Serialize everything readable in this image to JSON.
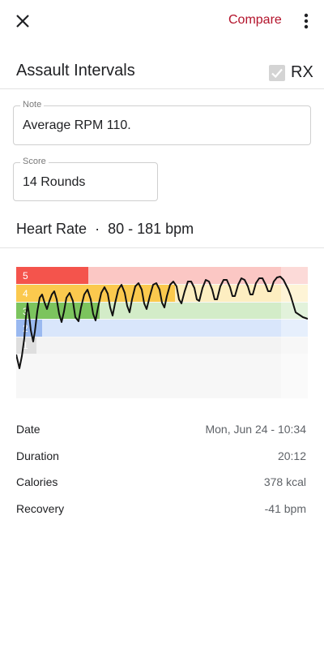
{
  "header": {
    "compare_label": "Compare"
  },
  "workout": {
    "title": "Assault Intervals",
    "rx_label": "RX",
    "rx_checked": true
  },
  "note": {
    "label": "Note",
    "value": "Average RPM 110."
  },
  "score": {
    "label": "Score",
    "value": "14 Rounds"
  },
  "heart_rate": {
    "title": "Heart Rate",
    "separator": "·",
    "range": "80 - 181 bpm",
    "zones": [
      {
        "label": "5",
        "color": "#f4544c",
        "light": "#fbc7c4"
      },
      {
        "label": "4",
        "color": "#fbc94e",
        "light": "#fdeec1"
      },
      {
        "label": "3",
        "color": "#7cc45e",
        "light": "#d3ecc8"
      },
      {
        "label": "2",
        "color": "#9ab9f0",
        "light": "#d9e6fb"
      },
      {
        "label": "1",
        "color": "#dedede",
        "light": "#f3f3f3"
      }
    ]
  },
  "stats": [
    {
      "key": "Date",
      "value": "Mon, Jun 24 - 10:34"
    },
    {
      "key": "Duration",
      "value": "20:12"
    },
    {
      "key": "Calories",
      "value": "378 kcal"
    },
    {
      "key": "Recovery",
      "value": "-41 bpm"
    }
  ]
}
